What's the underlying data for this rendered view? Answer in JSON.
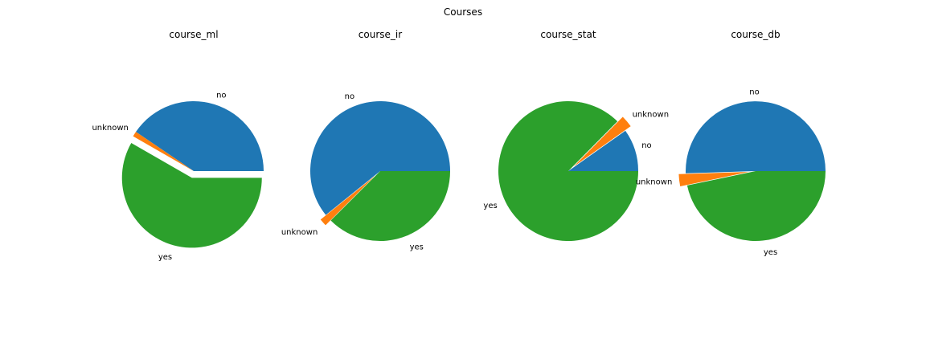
{
  "figure": {
    "title": "Courses"
  },
  "colors": {
    "no": "#1f77b4",
    "unknown": "#ff7f0e",
    "yes": "#2ca02c"
  },
  "chart_data": [
    {
      "type": "pie",
      "title": "course_ml",
      "labels": [
        "no",
        "unknown",
        "yes"
      ],
      "values": [
        40.5,
        1.2,
        58.3
      ],
      "explode": [
        0,
        0,
        0.1
      ]
    },
    {
      "type": "pie",
      "title": "course_ir",
      "labels": [
        "no",
        "unknown",
        "yes"
      ],
      "values": [
        60.8,
        1.7,
        37.5
      ],
      "explode": [
        0,
        0.1,
        0
      ]
    },
    {
      "type": "pie",
      "title": "course_stat",
      "labels": [
        "no",
        "unknown",
        "yes"
      ],
      "values": [
        9.8,
        2.8,
        87.4
      ],
      "explode": [
        0,
        0.1,
        0
      ]
    },
    {
      "type": "pie",
      "title": "course_db",
      "labels": [
        "no",
        "unknown",
        "yes"
      ],
      "values": [
        50.5,
        2.8,
        46.7
      ],
      "explode": [
        0,
        0.1,
        0
      ]
    }
  ]
}
